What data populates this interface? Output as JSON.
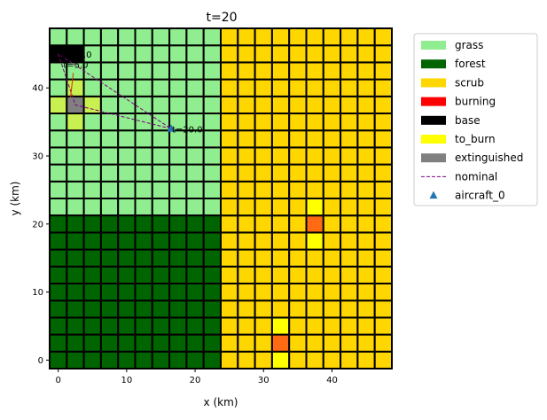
{
  "chart_data": {
    "type": "heatmap",
    "title": "t=20",
    "xlabel": "x (km)",
    "ylabel": "y (km)",
    "xlim": [
      -1.25,
      48.75
    ],
    "ylim": [
      -1.25,
      48.75
    ],
    "xticks": [
      0,
      10,
      20,
      30,
      40
    ],
    "yticks": [
      0,
      10,
      20,
      30,
      40
    ],
    "cell_size_km": 2.5,
    "grid": {
      "cols": 20,
      "rows": 20
    },
    "regions": [
      {
        "type": "grass",
        "x": [
          0,
          22.5
        ],
        "y": [
          22.5,
          47.5
        ]
      },
      {
        "type": "forest",
        "x": [
          0,
          22.5
        ],
        "y": [
          0,
          20
        ]
      },
      {
        "type": "scrub",
        "x": [
          25,
          47.5
        ],
        "y": [
          0,
          47.5
        ]
      }
    ],
    "special_cells": [
      {
        "x": 0,
        "y": 45,
        "type": "base"
      },
      {
        "x": 2.5,
        "y": 45,
        "type": "base"
      },
      {
        "x": 2.5,
        "y": 37.5,
        "type": "extinguished"
      },
      {
        "x": 0,
        "y": 37.5,
        "type": "to_burn_grass"
      },
      {
        "x": 5,
        "y": 37.5,
        "type": "to_burn_grass"
      },
      {
        "x": 2.5,
        "y": 40,
        "type": "to_burn_grass"
      },
      {
        "x": 2.5,
        "y": 35,
        "type": "to_burn_grass"
      },
      {
        "x": 37.5,
        "y": 20,
        "type": "fire"
      },
      {
        "x": 37.5,
        "y": 22.5,
        "type": "to_burn"
      },
      {
        "x": 37.5,
        "y": 17.5,
        "type": "to_burn"
      },
      {
        "x": 32.5,
        "y": 2.5,
        "type": "fire"
      },
      {
        "x": 32.5,
        "y": 5,
        "type": "to_burn"
      },
      {
        "x": 32.5,
        "y": 0,
        "type": "to_burn"
      }
    ],
    "nominal_path": {
      "x": [
        0,
        2.5,
        16.5,
        0
      ],
      "y": [
        45,
        37.5,
        34,
        45
      ]
    },
    "aircraft": {
      "name": "aircraft_0",
      "x": 16.5,
      "y": 34
    },
    "annotations": [
      {
        "text": "t=0.0",
        "x": 0,
        "y": 45
      },
      {
        "text": "t=10.0",
        "x": 0.3,
        "y": 45
      },
      {
        "text": "t=5.0",
        "x": 0.6,
        "y": 43.5
      },
      {
        "text": "t=20.0",
        "x": 16.5,
        "y": 34
      }
    ],
    "legend": {
      "placement": "outside-right",
      "entries": [
        {
          "label": "grass",
          "kind": "patch",
          "color": "#90EE90"
        },
        {
          "label": "forest",
          "kind": "patch",
          "color": "#006400"
        },
        {
          "label": "scrub",
          "kind": "patch",
          "color": "#FFD700"
        },
        {
          "label": "burning",
          "kind": "patch",
          "color": "#FF0000"
        },
        {
          "label": "base",
          "kind": "patch",
          "color": "#000000"
        },
        {
          "label": "to_burn",
          "kind": "patch",
          "color": "#FFFF00"
        },
        {
          "label": "extinguished",
          "kind": "patch",
          "color": "#808080"
        },
        {
          "label": "nominal",
          "kind": "line",
          "color": "#800080"
        },
        {
          "label": "aircraft_0",
          "kind": "marker",
          "color": "#1F77B4"
        }
      ]
    },
    "colors": {
      "grass": "#90EE90",
      "forest": "#006400",
      "scrub": "#FFD700",
      "base": "#000000",
      "extinguished": "#808080",
      "to_burn": "#FFFF00",
      "to_burn_grass": "#C8F050",
      "fire": "#FF6A12",
      "cell_edge": "#000000",
      "nominal": "#800080",
      "aircraft": "#1F77B4"
    }
  }
}
